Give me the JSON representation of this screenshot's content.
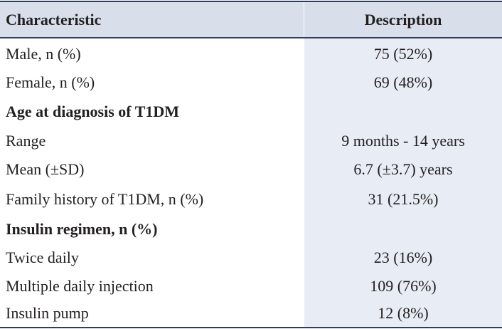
{
  "table": {
    "headers": {
      "characteristic": "Characteristic",
      "description": "Description"
    },
    "rows": [
      {
        "characteristic": "Male, n (%)",
        "description": "75 (52%)",
        "section": false
      },
      {
        "characteristic": "Female, n (%)",
        "description": "69 (48%)",
        "section": false
      },
      {
        "characteristic": "Age at diagnosis of T1DM",
        "description": "",
        "section": true
      },
      {
        "characteristic": "Range",
        "description": "9 months - 14 years",
        "section": false
      },
      {
        "characteristic": "Mean (±SD)",
        "description": "6.7 (±3.7) years",
        "section": false
      },
      {
        "characteristic": "Family history of T1DM, n (%)",
        "description": "31 (21.5%)",
        "section": false
      },
      {
        "characteristic": "Insulin regimen, n (%)",
        "description": "",
        "section": true
      },
      {
        "characteristic": "Twice daily",
        "description": "23 (16%)",
        "section": false
      },
      {
        "characteristic": "Multiple daily injection",
        "description": "109 (76%)",
        "section": false
      },
      {
        "characteristic": "Insulin pump",
        "description": "12 (8%)",
        "section": false
      }
    ]
  },
  "colors": {
    "header_bg": "#d8deea",
    "description_bg": "#e8ecf4",
    "rule": "#2f3d5c",
    "text": "#231f20"
  }
}
